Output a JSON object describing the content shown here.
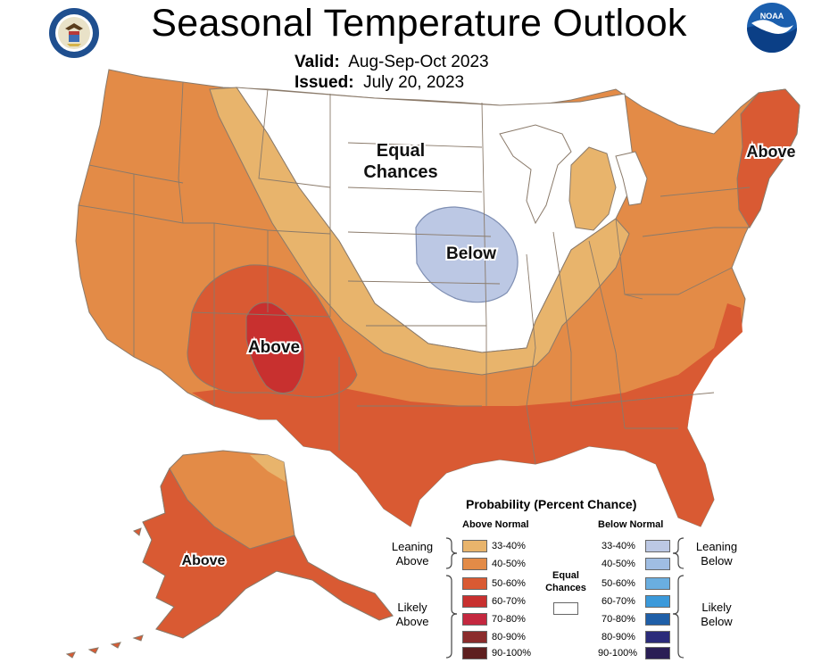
{
  "header": {
    "title": "Seasonal Temperature Outlook",
    "valid_label": "Valid:",
    "valid_value": "Aug-Sep-Oct 2023",
    "issued_label": "Issued:",
    "issued_value": "July 20, 2023"
  },
  "logos": {
    "left": "doc-seal-icon",
    "right": "noaa-logo-icon",
    "noaa_text": "NOAA"
  },
  "map_labels": {
    "equal_line1": "Equal",
    "equal_line2": "Chances",
    "below": "Below",
    "above_southwest": "Above",
    "above_northeast": "Above",
    "above_alaska": "Above"
  },
  "colors": {
    "above_33_40": "#e8b46c",
    "above_40_50": "#e38b47",
    "above_50_60": "#d95a33",
    "above_60_70": "#c8302f",
    "above_70_80": "#c4283f",
    "above_80_90": "#8b2c2c",
    "above_90_100": "#5e1f1f",
    "below_33_40": "#bcc8e4",
    "below_40_50": "#9fbde3",
    "below_50_60": "#6aaee0",
    "below_60_70": "#3b99da",
    "below_70_80": "#1f5fa8",
    "below_80_90": "#2b2b7a",
    "below_90_100": "#2a1e55",
    "equal": "#ffffff"
  },
  "legend": {
    "title": "Probability (Percent Chance)",
    "above_header": "Above Normal",
    "below_header": "Below Normal",
    "above_ranges": [
      "33-40%",
      "40-50%",
      "50-60%",
      "60-70%",
      "70-80%",
      "80-90%",
      "90-100%"
    ],
    "below_ranges": [
      "33-40%",
      "40-50%",
      "50-60%",
      "60-70%",
      "70-80%",
      "80-90%",
      "90-100%"
    ],
    "leaning_above_1": "Leaning",
    "leaning_above_2": "Above",
    "likely_above_1": "Likely",
    "likely_above_2": "Above",
    "leaning_below_1": "Leaning",
    "leaning_below_2": "Below",
    "likely_below_1": "Likely",
    "likely_below_2": "Below",
    "equal_1": "Equal",
    "equal_2": "Chances"
  }
}
